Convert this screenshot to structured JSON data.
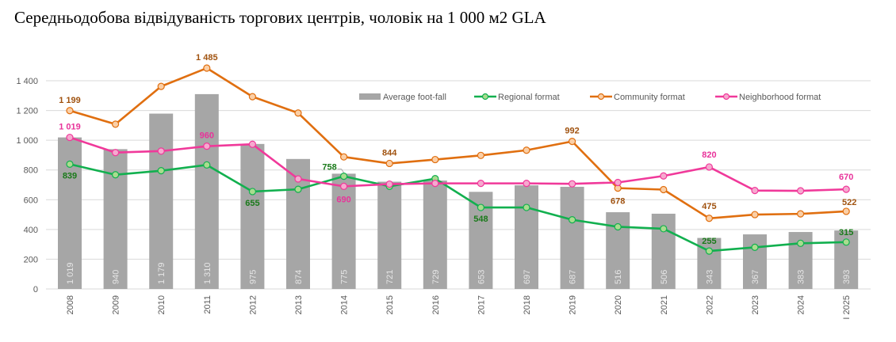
{
  "chart_data": {
    "type": "bar+line",
    "title": "Середньодобова відвідуваність торгових центрів, чоловік на 1 000 м2 GLA",
    "categories": [
      "2008",
      "2009",
      "2010",
      "2011",
      "2012",
      "2013",
      "2014",
      "2015",
      "2016",
      "2017",
      "2018",
      "2019",
      "2020",
      "2021",
      "2022",
      "2023",
      "2024",
      "I 2025"
    ],
    "ylim": [
      0,
      1400
    ],
    "yticks": [
      0,
      200,
      400,
      600,
      800,
      1000,
      1200,
      1400
    ],
    "ytick_labels": [
      "0",
      "200",
      "400",
      "600",
      "800",
      "1 000",
      "1 200",
      "1 400"
    ],
    "grid": true,
    "legend": "top-right",
    "bar_series": {
      "name": "Average foot-fall",
      "color": "#a6a6a6",
      "values": [
        1019,
        940,
        1179,
        1310,
        975,
        874,
        775,
        721,
        729,
        653,
        697,
        687,
        516,
        506,
        343,
        367,
        383,
        393
      ],
      "labels": [
        "1 019",
        "940",
        "1 179",
        "1 310",
        "975",
        "874",
        "775",
        "721",
        "729",
        "653",
        "697",
        "687",
        "516",
        "506",
        "343",
        "367",
        "383",
        "393"
      ]
    },
    "line_series": [
      {
        "name": "Regional format",
        "color": "#12b04f",
        "marker_fill": "#a9dc8f",
        "label_color": "#1a7a1a",
        "values": [
          839,
          768,
          795,
          834,
          655,
          670,
          758,
          690,
          742,
          548,
          548,
          465,
          418,
          405,
          255,
          280,
          307,
          315
        ],
        "labels": [
          "839",
          null,
          null,
          null,
          "655",
          null,
          "758",
          null,
          null,
          "548",
          null,
          null,
          null,
          null,
          "255",
          null,
          null,
          "315"
        ]
      },
      {
        "name": "Community format",
        "color": "#e06f10",
        "marker_fill": "#fbcfa6",
        "label_color": "#a0520f",
        "values": [
          1199,
          1108,
          1362,
          1485,
          1293,
          1183,
          888,
          844,
          870,
          898,
          933,
          992,
          678,
          668,
          475,
          500,
          505,
          522
        ],
        "labels": [
          "1 199",
          null,
          null,
          "1 485",
          null,
          null,
          null,
          "844",
          null,
          null,
          null,
          "992",
          "678",
          null,
          "475",
          null,
          null,
          "522"
        ]
      },
      {
        "name": "Neighborhood format",
        "color": "#f0399a",
        "marker_fill": "#f6a9cf",
        "label_color": "#e8339a",
        "values": [
          1019,
          917,
          927,
          960,
          973,
          740,
          690,
          705,
          710,
          710,
          710,
          707,
          716,
          760,
          820,
          662,
          660,
          670
        ],
        "labels": [
          "1 019",
          null,
          null,
          "960",
          null,
          null,
          "690",
          null,
          null,
          null,
          null,
          null,
          null,
          null,
          "820",
          null,
          null,
          "670"
        ]
      }
    ]
  }
}
